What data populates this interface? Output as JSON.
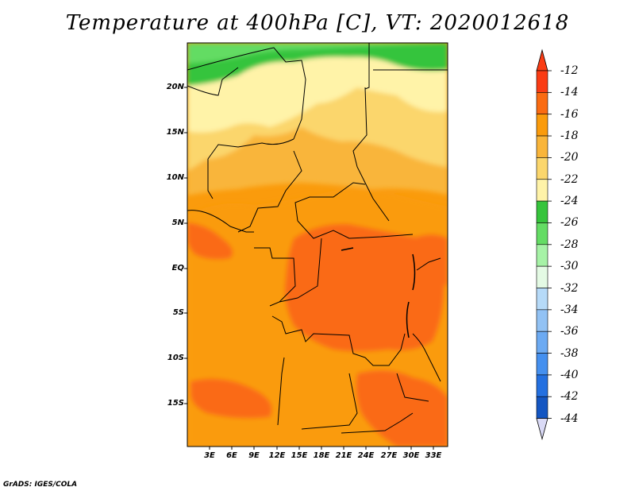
{
  "title": "Temperature at 400hPa [C], VT: 2020012618",
  "map": {
    "lat_labels": [
      "20N",
      "15N",
      "10N",
      "5N",
      "EQ",
      "5S",
      "10S",
      "15S"
    ],
    "lon_labels": [
      "3E",
      "6E",
      "9E",
      "12E",
      "15E",
      "18E",
      "21E",
      "24E",
      "27E",
      "30E",
      "33E"
    ]
  },
  "colorbar": {
    "labels": [
      "-12",
      "-14",
      "-16",
      "-18",
      "-20",
      "-22",
      "-24",
      "-26",
      "-28",
      "-30",
      "-32",
      "-34",
      "-36",
      "-38",
      "-40",
      "-42",
      "-44"
    ],
    "colors": [
      "#fa3c14",
      "#fa6b12",
      "#fa9b0c",
      "#f9b53a",
      "#fbd66c",
      "#fff3a8",
      "#36c43c",
      "#64dc64",
      "#a6f2a6",
      "#e4fae4",
      "#b6daf8",
      "#92c2f4",
      "#6caaf2",
      "#4590ef",
      "#2470e0",
      "#1456c2",
      "#0c1b82"
    ],
    "top_arrow_color": "#fa3c14",
    "bottom_arrow_color": "#dadaf6"
  },
  "credit": "GrADS: IGES/COLA"
}
